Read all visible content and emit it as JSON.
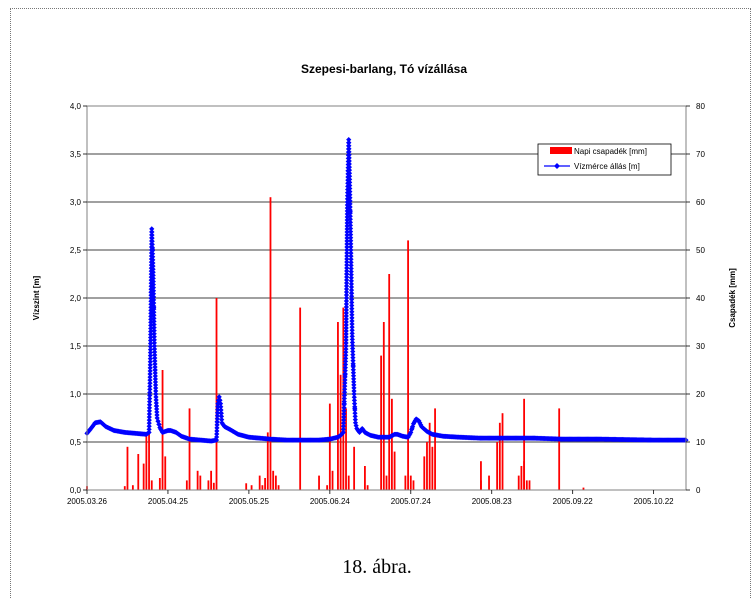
{
  "chart_data": {
    "type": "bar",
    "title": "Szepesi-barlang, Tó vízállása",
    "ylabel": "Vízszint [m]",
    "y2label": "Csapadék [mm]",
    "ylim": [
      0,
      4.0
    ],
    "y2lim": [
      0,
      80
    ],
    "yticks": [
      "0,0",
      "0,5",
      "1,0",
      "1,5",
      "2,0",
      "2,5",
      "3,0",
      "3,5",
      "4,0"
    ],
    "y2ticks": [
      "0",
      "10",
      "20",
      "30",
      "40",
      "50",
      "60",
      "70",
      "80"
    ],
    "xticks": [
      "2005.03.26",
      "2005.04.25",
      "2005.05.25",
      "2005.06.24",
      "2005.07.24",
      "2005.08.23",
      "2005.09.22",
      "2005.10.22"
    ],
    "xlim_days": [
      0,
      222
    ],
    "x_start_date": "2005.03.26",
    "legend_position": "top-right",
    "grid": true,
    "series": [
      {
        "name": "Napi csapadék [mm]",
        "axis": "right",
        "color": "#ff0000",
        "type": "bar",
        "points": [
          [
            0,
            0.8
          ],
          [
            14,
            0.8
          ],
          [
            15,
            9
          ],
          [
            17,
            1
          ],
          [
            19,
            7.5
          ],
          [
            21,
            5.5
          ],
          [
            22,
            12
          ],
          [
            23,
            13
          ],
          [
            24,
            2
          ],
          [
            27,
            2.5
          ],
          [
            28,
            25
          ],
          [
            29,
            7
          ],
          [
            37,
            2
          ],
          [
            38,
            17
          ],
          [
            41,
            4
          ],
          [
            42,
            3
          ],
          [
            45,
            2
          ],
          [
            46,
            4
          ],
          [
            47,
            1.5
          ],
          [
            48,
            40
          ],
          [
            59,
            1.4
          ],
          [
            61,
            1
          ],
          [
            64,
            3
          ],
          [
            65,
            1
          ],
          [
            66,
            2.5
          ],
          [
            67,
            12
          ],
          [
            68,
            61
          ],
          [
            69,
            4
          ],
          [
            70,
            3
          ],
          [
            71,
            1
          ],
          [
            79,
            38
          ],
          [
            86,
            3
          ],
          [
            89,
            1
          ],
          [
            90,
            18
          ],
          [
            91,
            4
          ],
          [
            93,
            35
          ],
          [
            94,
            24
          ],
          [
            95,
            38
          ],
          [
            96,
            17
          ],
          [
            97,
            3
          ],
          [
            99,
            9
          ],
          [
            103,
            5
          ],
          [
            104,
            1
          ],
          [
            109,
            28
          ],
          [
            110,
            35
          ],
          [
            111,
            3
          ],
          [
            112,
            45
          ],
          [
            113,
            19
          ],
          [
            114,
            8
          ],
          [
            118,
            3
          ],
          [
            119,
            52
          ],
          [
            120,
            3
          ],
          [
            121,
            2
          ],
          [
            125,
            7
          ],
          [
            126,
            10
          ],
          [
            127,
            14
          ],
          [
            128,
            9
          ],
          [
            129,
            17
          ],
          [
            146,
            2
          ],
          [
            146,
            6
          ],
          [
            149,
            3
          ],
          [
            152,
            10
          ],
          [
            153,
            14
          ],
          [
            154,
            16
          ],
          [
            160,
            3
          ],
          [
            161,
            5
          ],
          [
            162,
            6
          ],
          [
            162,
            19
          ],
          [
            163,
            2
          ],
          [
            164,
            2
          ],
          [
            175,
            17
          ],
          [
            184,
            0.5
          ]
        ]
      },
      {
        "name": "Vízmérce állás [m]",
        "axis": "left",
        "color": "#0000ff",
        "type": "line",
        "points": [
          [
            0,
            0.59
          ],
          [
            2,
            0.66
          ],
          [
            3,
            0.7
          ],
          [
            5,
            0.71
          ],
          [
            7,
            0.66
          ],
          [
            10,
            0.62
          ],
          [
            14,
            0.6
          ],
          [
            18,
            0.59
          ],
          [
            22,
            0.58
          ],
          [
            23,
            0.6
          ],
          [
            23.2,
            0.92
          ],
          [
            23.5,
            1.4
          ],
          [
            24,
            2.72
          ],
          [
            24.5,
            2.3
          ],
          [
            25,
            1.5
          ],
          [
            25.5,
            1.0
          ],
          [
            26,
            0.75
          ],
          [
            27,
            0.65
          ],
          [
            28,
            0.6
          ],
          [
            30,
            0.62
          ],
          [
            31,
            0.62
          ],
          [
            33,
            0.6
          ],
          [
            35,
            0.56
          ],
          [
            38,
            0.53
          ],
          [
            42,
            0.52
          ],
          [
            46,
            0.51
          ],
          [
            48,
            0.52
          ],
          [
            48.5,
            0.9
          ],
          [
            49,
            0.97
          ],
          [
            49.5,
            0.9
          ],
          [
            50,
            0.7
          ],
          [
            51,
            0.66
          ],
          [
            53,
            0.63
          ],
          [
            56,
            0.58
          ],
          [
            60,
            0.55
          ],
          [
            64,
            0.54
          ],
          [
            68,
            0.53
          ],
          [
            74,
            0.52
          ],
          [
            80,
            0.52
          ],
          [
            86,
            0.52
          ],
          [
            90,
            0.53
          ],
          [
            93,
            0.55
          ],
          [
            94,
            0.57
          ],
          [
            95,
            0.6
          ],
          [
            96,
            1.5
          ],
          [
            96.5,
            3.0
          ],
          [
            97,
            3.65
          ],
          [
            97.3,
            3.3
          ],
          [
            97.8,
            2.5
          ],
          [
            98.3,
            1.6
          ],
          [
            99,
            1.0
          ],
          [
            99.5,
            0.7
          ],
          [
            100,
            0.64
          ],
          [
            101,
            0.6
          ],
          [
            102,
            0.64
          ],
          [
            103,
            0.6
          ],
          [
            105,
            0.57
          ],
          [
            108,
            0.55
          ],
          [
            112,
            0.55
          ],
          [
            114,
            0.58
          ],
          [
            115,
            0.58
          ],
          [
            117,
            0.56
          ],
          [
            119,
            0.55
          ],
          [
            120,
            0.6
          ],
          [
            121,
            0.69
          ],
          [
            122,
            0.74
          ],
          [
            123,
            0.72
          ],
          [
            124,
            0.66
          ],
          [
            126,
            0.61
          ],
          [
            128,
            0.58
          ],
          [
            132,
            0.56
          ],
          [
            138,
            0.55
          ],
          [
            146,
            0.54
          ],
          [
            156,
            0.54
          ],
          [
            166,
            0.54
          ],
          [
            176,
            0.53
          ],
          [
            190,
            0.53
          ],
          [
            210,
            0.52
          ],
          [
            222,
            0.52
          ]
        ]
      }
    ]
  },
  "caption": "18. ábra."
}
